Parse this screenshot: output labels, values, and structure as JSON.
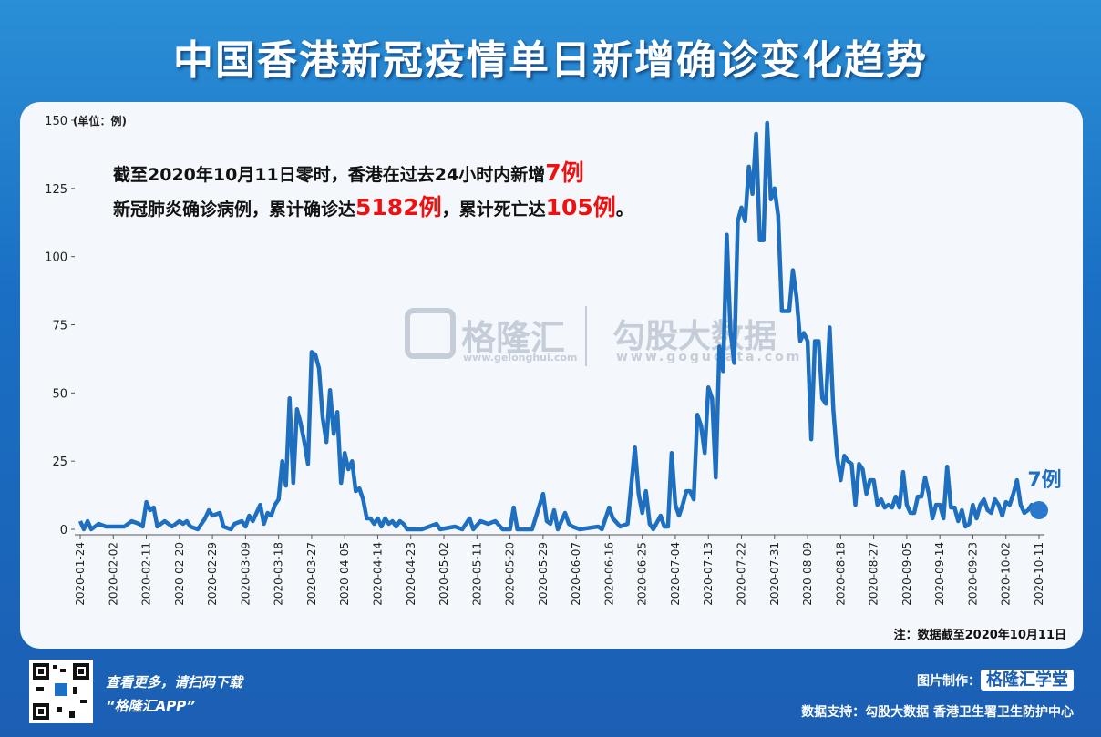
{
  "chart_data": {
    "type": "line",
    "title": "中国香港新冠疫情单日新增确诊变化趋势",
    "y_unit": "(单位：例)",
    "annotation": [
      "截至2020年10月11日零时，香港在过去24小时内新增",
      "7例",
      "新冠肺炎确诊病例，累计确诊达",
      "5182例",
      "，累计死亡达",
      "105例",
      "。"
    ],
    "end_label": "7例",
    "note": "注：数据截至2020年10月11日",
    "color": "#1f6fc0",
    "x": [
      "2020-01-24",
      "2020-01-25",
      "2020-01-26",
      "2020-01-27",
      "2020-01-29",
      "2020-01-31",
      "2020-02-03",
      "2020-02-05",
      "2020-02-07",
      "2020-02-09",
      "2020-02-10",
      "2020-02-11",
      "2020-02-12",
      "2020-02-13",
      "2020-02-14",
      "2020-02-16",
      "2020-02-18",
      "2020-02-20",
      "2020-02-21",
      "2020-02-22",
      "2020-02-23",
      "2020-02-25",
      "2020-02-27",
      "2020-02-28",
      "2020-02-29",
      "2020-03-02",
      "2020-03-03",
      "2020-03-05",
      "2020-03-06",
      "2020-03-08",
      "2020-03-09",
      "2020-03-10",
      "2020-03-11",
      "2020-03-13",
      "2020-03-14",
      "2020-03-15",
      "2020-03-16",
      "2020-03-17",
      "2020-03-18",
      "2020-03-19",
      "2020-03-20",
      "2020-03-21",
      "2020-03-22",
      "2020-03-23",
      "2020-03-24",
      "2020-03-25",
      "2020-03-26",
      "2020-03-27",
      "2020-03-28",
      "2020-03-29",
      "2020-03-30",
      "2020-03-31",
      "2020-04-01",
      "2020-04-02",
      "2020-04-03",
      "2020-04-04",
      "2020-04-05",
      "2020-04-06",
      "2020-04-07",
      "2020-04-08",
      "2020-04-09",
      "2020-04-10",
      "2020-04-11",
      "2020-04-12",
      "2020-04-13",
      "2020-04-14",
      "2020-04-15",
      "2020-04-16",
      "2020-04-17",
      "2020-04-18",
      "2020-04-19",
      "2020-04-20",
      "2020-04-21",
      "2020-04-22",
      "2020-04-26",
      "2020-04-30",
      "2020-05-01",
      "2020-05-05",
      "2020-05-07",
      "2020-05-09",
      "2020-05-10",
      "2020-05-12",
      "2020-05-14",
      "2020-05-16",
      "2020-05-18",
      "2020-05-20",
      "2020-05-21",
      "2020-05-22",
      "2020-05-26",
      "2020-05-29",
      "2020-05-30",
      "2020-05-31",
      "2020-06-01",
      "2020-06-02",
      "2020-06-04",
      "2020-06-05",
      "2020-06-06",
      "2020-06-08",
      "2020-06-13",
      "2020-06-14",
      "2020-06-16",
      "2020-06-17",
      "2020-06-19",
      "2020-06-21",
      "2020-06-23",
      "2020-06-24",
      "2020-06-25",
      "2020-06-26",
      "2020-06-27",
      "2020-06-28",
      "2020-06-30",
      "2020-07-01",
      "2020-07-02",
      "2020-07-03",
      "2020-07-04",
      "2020-07-05",
      "2020-07-06",
      "2020-07-07",
      "2020-07-08",
      "2020-07-09",
      "2020-07-10",
      "2020-07-11",
      "2020-07-12",
      "2020-07-13",
      "2020-07-14",
      "2020-07-15",
      "2020-07-16",
      "2020-07-17",
      "2020-07-18",
      "2020-07-19",
      "2020-07-20",
      "2020-07-21",
      "2020-07-22",
      "2020-07-23",
      "2020-07-24",
      "2020-07-25",
      "2020-07-26",
      "2020-07-27",
      "2020-07-28",
      "2020-07-29",
      "2020-07-30",
      "2020-07-31",
      "2020-08-01",
      "2020-08-02",
      "2020-08-03",
      "2020-08-04",
      "2020-08-05",
      "2020-08-06",
      "2020-08-07",
      "2020-08-08",
      "2020-08-09",
      "2020-08-10",
      "2020-08-11",
      "2020-08-12",
      "2020-08-13",
      "2020-08-14",
      "2020-08-15",
      "2020-08-16",
      "2020-08-17",
      "2020-08-18",
      "2020-08-19",
      "2020-08-20",
      "2020-08-21",
      "2020-08-22",
      "2020-08-23",
      "2020-08-24",
      "2020-08-25",
      "2020-08-26",
      "2020-08-27",
      "2020-08-28",
      "2020-08-29",
      "2020-08-30",
      "2020-08-31",
      "2020-09-01",
      "2020-09-02",
      "2020-09-03",
      "2020-09-04",
      "2020-09-05",
      "2020-09-06",
      "2020-09-07",
      "2020-09-08",
      "2020-09-09",
      "2020-09-10",
      "2020-09-11",
      "2020-09-12",
      "2020-09-13",
      "2020-09-14",
      "2020-09-15",
      "2020-09-16",
      "2020-09-17",
      "2020-09-18",
      "2020-09-19",
      "2020-09-20",
      "2020-09-21",
      "2020-09-22",
      "2020-09-23",
      "2020-09-24",
      "2020-09-25",
      "2020-09-26",
      "2020-09-27",
      "2020-09-28",
      "2020-09-29",
      "2020-09-30",
      "2020-10-01",
      "2020-10-02",
      "2020-10-03",
      "2020-10-04",
      "2020-10-05",
      "2020-10-06",
      "2020-10-07",
      "2020-10-08",
      "2020-10-09",
      "2020-10-10",
      "2020-10-11"
    ],
    "values": [
      3,
      0,
      3,
      0,
      2,
      1,
      1,
      1,
      3,
      2,
      1,
      10,
      7,
      8,
      1,
      3,
      1,
      3,
      2,
      3,
      1,
      0,
      4,
      7,
      5,
      6,
      1,
      0,
      2,
      3,
      1,
      5,
      3,
      9,
      2,
      6,
      5,
      9,
      11,
      25,
      16,
      48,
      17,
      44,
      39,
      32,
      24,
      65,
      64,
      59,
      41,
      32,
      51,
      35,
      43,
      17,
      28,
      22,
      25,
      14,
      15,
      11,
      4,
      4,
      2,
      4,
      1,
      4,
      2,
      3,
      1,
      3,
      2,
      0,
      0,
      2,
      0,
      1,
      0,
      4,
      0,
      3,
      2,
      3,
      0,
      0,
      8,
      0,
      0,
      13,
      3,
      2,
      7,
      0,
      6,
      2,
      1,
      0,
      1,
      0,
      8,
      4,
      1,
      2,
      30,
      13,
      6,
      14,
      2,
      0,
      5,
      1,
      1,
      28,
      9,
      5,
      9,
      14,
      14,
      11,
      42,
      38,
      28,
      52,
      48,
      19,
      67,
      58,
      108,
      73,
      61,
      113,
      118,
      113,
      133,
      123,
      145,
      106,
      106,
      149,
      121,
      125,
      115,
      80,
      80,
      80,
      95,
      85,
      69,
      72,
      69,
      33,
      69,
      69,
      48,
      46,
      74,
      44,
      27,
      18,
      27,
      25,
      24,
      9,
      24,
      22,
      13,
      18,
      18,
      9,
      11,
      8,
      9,
      8,
      12,
      8,
      21,
      9,
      6,
      6,
      12,
      12,
      19,
      13,
      4,
      9,
      9,
      4,
      23,
      8,
      8,
      3,
      7,
      1,
      2,
      9,
      4,
      9,
      11,
      7,
      6,
      11,
      9,
      5,
      10,
      9,
      13,
      18,
      9,
      6,
      7,
      9,
      7,
      7
    ],
    "xlim": [
      "2020-01-24",
      "2020-10-11"
    ],
    "xticks": [
      "2020-01-24",
      "2020-02-02",
      "2020-02-11",
      "2020-02-20",
      "2020-02-29",
      "2020-03-09",
      "2020-03-18",
      "2020-03-27",
      "2020-04-05",
      "2020-04-14",
      "2020-04-23",
      "2020-05-02",
      "2020-05-11",
      "2020-05-20",
      "2020-05-29",
      "2020-06-07",
      "2020-06-16",
      "2020-06-25",
      "2020-07-04",
      "2020-07-13",
      "2020-07-22",
      "2020-07-31",
      "2020-08-09",
      "2020-08-18",
      "2020-08-27",
      "2020-09-05",
      "2020-09-14",
      "2020-09-23",
      "2020-10-02",
      "2020-10-11"
    ],
    "ylim": [
      0,
      150
    ],
    "yticks": [
      0,
      25,
      50,
      75,
      100,
      125,
      150
    ],
    "grid": false
  },
  "watermark": {
    "brand": "格隆汇",
    "brand_url": "www.gelonghui.com",
    "partner": "勾股大数据",
    "partner_url": "www.gogudata.com"
  },
  "footer": {
    "scan_text": "查看更多，请扫码下载",
    "app_name": "“格隆汇APP”",
    "made_by_label": "图片制作：",
    "made_by": "格隆汇学堂",
    "source": "数据支持：勾股大数据  香港卫生署卫生防护中心"
  }
}
